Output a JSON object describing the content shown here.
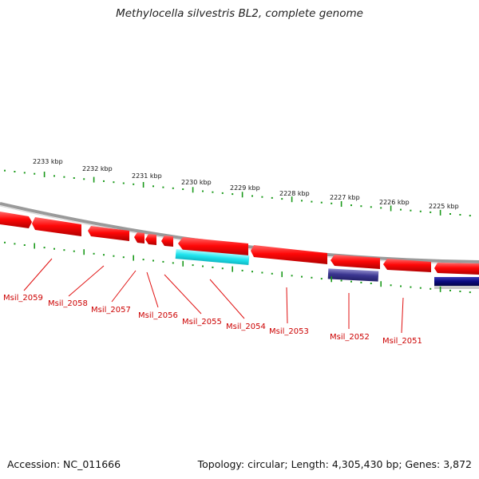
{
  "title": "Methylocella silvestris BL2, complete genome",
  "footer": {
    "accession": "Accession: NC_011666",
    "summary": "Topology: circular; Length: 4,305,430 bp; Genes: 3,872"
  },
  "scale_labels": [
    "2233 kbp",
    "2232 kbp",
    "2231 kbp",
    "2230 kbp",
    "2229 kbp",
    "2228 kbp",
    "2227 kbp",
    "2226 kbp",
    "2225 kbp"
  ],
  "gene_labels": [
    "Msil_2059",
    "Msil_2058",
    "Msil_2057",
    "Msil_2056",
    "Msil_2055",
    "Msil_2054",
    "Msil_2053",
    "Msil_2052",
    "Msil_2051"
  ],
  "colors": {
    "forward_cds": "#ff1010",
    "backbone": "#888888",
    "tick": "#1a9a1a",
    "label": "#cc0000",
    "rna_cyan": "#22e8f0",
    "rna_slate": "#3a3590",
    "rna_navy": "#0a0a80"
  }
}
